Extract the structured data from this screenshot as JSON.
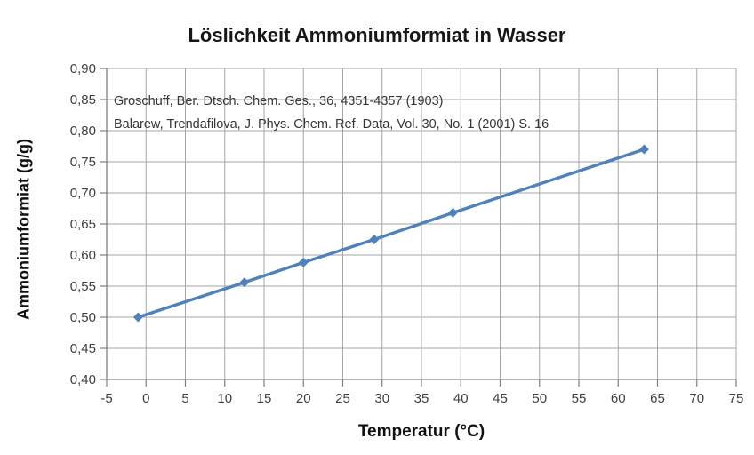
{
  "title": "Löslichkeit Ammoniumformiat in Wasser",
  "chart_data": {
    "type": "line",
    "title": "Löslichkeit Ammoniumformiat in Wasser",
    "xlabel": "Temperatur (°C)",
    "ylabel": "Ammoniumformiat (g/g)",
    "series": [
      {
        "name": "Löslichkeit Ammoniumformiat",
        "x": [
          -1,
          12.5,
          20,
          29,
          39,
          63.3
        ],
        "y": [
          0.5,
          0.556,
          0.588,
          0.625,
          0.668,
          0.77
        ]
      }
    ],
    "xlim": [
      -5,
      75
    ],
    "ylim": [
      0.4,
      0.9
    ],
    "x_ticks": [
      -5,
      0,
      5,
      10,
      15,
      20,
      25,
      30,
      35,
      40,
      45,
      50,
      55,
      60,
      65,
      70,
      75
    ],
    "x_tick_labels": [
      "-5",
      "0",
      "5",
      "10",
      "15",
      "20",
      "25",
      "30",
      "35",
      "40",
      "45",
      "50",
      "55",
      "60",
      "65",
      "70",
      "75"
    ],
    "y_ticks": [
      0.4,
      0.45,
      0.5,
      0.55,
      0.6,
      0.65,
      0.7,
      0.75,
      0.8,
      0.85,
      0.9
    ],
    "y_tick_labels": [
      "0,40",
      "0,45",
      "0,50",
      "0,55",
      "0,60",
      "0,65",
      "0,70",
      "0,75",
      "0,80",
      "0,85",
      "0,90"
    ],
    "grid": true,
    "legend": "none",
    "marker": "diamond",
    "annotations": [
      "Groschuff, Ber. Dtsch. Chem. Ges., 36, 4351-4357 (1903)",
      "Balarew, Trendafilova, J. Phys. Chem. Ref. Data, Vol. 30, No. 1 (2001) S. 16"
    ],
    "colors": {
      "line": "#4F81BD",
      "grid": "#A6A6A6",
      "axis": "#7F7F7F",
      "tick_text": "#3F3F3F",
      "background": "#FFFFFF"
    }
  }
}
